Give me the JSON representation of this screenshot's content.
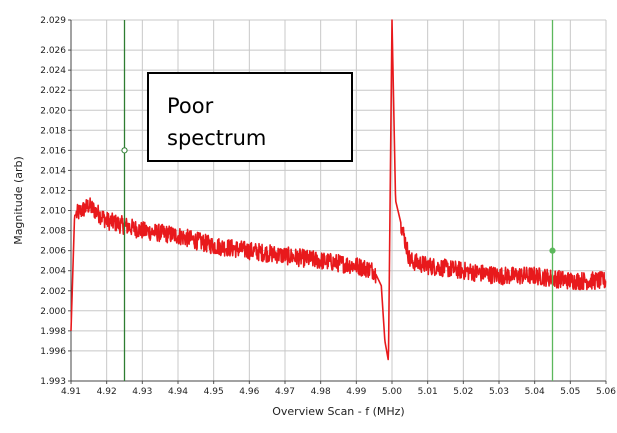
{
  "chart_data": {
    "type": "line",
    "xlabel": "Overview Scan - f (MHz)",
    "ylabel": "Magnitude (arb)",
    "xlim": [
      4.91,
      5.06
    ],
    "ylim": [
      1.993,
      2.029
    ],
    "x_ticks": [
      "4.91",
      "4.92",
      "4.93",
      "4.94",
      "4.95",
      "4.96",
      "4.97",
      "4.98",
      "4.99",
      "5.00",
      "5.01",
      "5.02",
      "5.03",
      "5.04",
      "5.05",
      "5.06"
    ],
    "y_ticks": [
      "1.993",
      "1.996",
      "1.998",
      "2.000",
      "2.002",
      "2.004",
      "2.006",
      "2.008",
      "2.010",
      "2.012",
      "2.014",
      "2.016",
      "2.018",
      "2.020",
      "2.022",
      "2.024",
      "2.026",
      "2.029"
    ],
    "series": [
      {
        "color": "#e8191c",
        "x": [
          4.91,
          4.911,
          4.913,
          4.915,
          4.92,
          4.925,
          4.93,
          4.94,
          4.95,
          4.96,
          4.97,
          4.98,
          4.99,
          4.995,
          4.997,
          4.998,
          4.999,
          5.0,
          5.001,
          5.005,
          5.01,
          5.02,
          5.03,
          5.04,
          5.05,
          5.06
        ],
        "y": [
          1.998,
          2.0095,
          2.01,
          2.0105,
          2.009,
          2.0085,
          2.008,
          2.0075,
          2.0065,
          2.006,
          2.0055,
          2.005,
          2.0045,
          2.004,
          2.0025,
          1.997,
          1.995,
          2.029,
          2.011,
          2.005,
          2.0045,
          2.004,
          2.0035,
          2.0035,
          2.003,
          2.003
        ],
        "noise": 0.0009
      }
    ],
    "cursors": [
      {
        "x": 4.925,
        "marker_y": 2.016,
        "color": "#2e7d32"
      },
      {
        "x": 5.045,
        "marker_y": 2.006,
        "color": "#5cb85c"
      }
    ],
    "grid": true,
    "background": "#ffffff",
    "plot_background": "#ffffff",
    "grid_color": "#c8c8c8"
  },
  "annotation": {
    "line1": "Poor",
    "line2": "spectrum"
  }
}
